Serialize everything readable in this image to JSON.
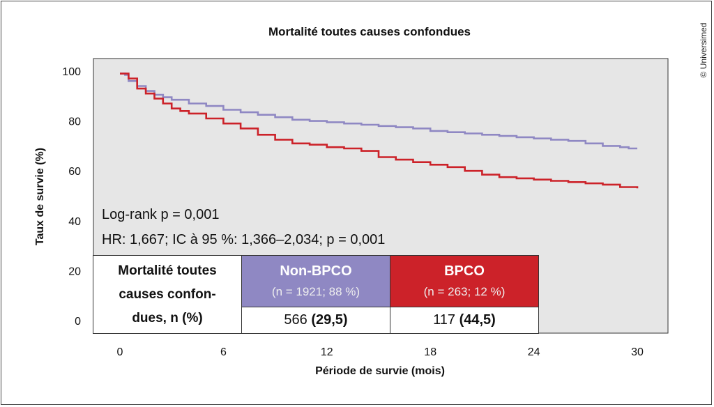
{
  "copyright": "© Universimed",
  "chart_data": {
    "type": "line",
    "title": "Mortalité toutes causes confondues",
    "xlabel": "Période de survie (mois)",
    "ylabel": "Taux de survie (%)",
    "xlim": [
      0,
      30
    ],
    "ylim": [
      0,
      100
    ],
    "xticks": [
      0,
      6,
      12,
      18,
      24,
      30
    ],
    "yticks": [
      0,
      20,
      40,
      60,
      80,
      100
    ],
    "background": "#e6e6e6",
    "grid": false,
    "series": [
      {
        "name": "Non-BPCO",
        "color": "#8f88c3",
        "x": [
          0,
          0.3,
          0.5,
          1,
          1.5,
          2,
          2.5,
          3,
          4,
          5,
          6,
          7,
          8,
          9,
          10,
          11,
          12,
          13,
          14,
          15,
          16,
          17,
          18,
          19,
          20,
          21,
          22,
          23,
          24,
          25,
          26,
          27,
          28,
          29,
          29.5,
          30
        ],
        "y": [
          99,
          98.5,
          96,
          94,
          92,
          90.5,
          89.5,
          88.5,
          87,
          86,
          84.5,
          83.5,
          82.5,
          81.5,
          80.5,
          80,
          79.5,
          79,
          78.5,
          78,
          77.5,
          77,
          76,
          75.5,
          75,
          74.5,
          74,
          73.5,
          73,
          72.5,
          72,
          71,
          70,
          69.5,
          69,
          69
        ]
      },
      {
        "name": "BPCO",
        "color": "#cc2229",
        "x": [
          0,
          0.3,
          0.5,
          1,
          1.5,
          2,
          2.5,
          3,
          3.5,
          4,
          5,
          6,
          7,
          8,
          9,
          10,
          11,
          12,
          13,
          14,
          15,
          16,
          17,
          18,
          19,
          20,
          21,
          22,
          23,
          24,
          25,
          26,
          27,
          28,
          29,
          30
        ],
        "y": [
          99,
          99,
          97,
          93,
          91,
          89,
          87,
          85,
          84,
          83,
          81,
          79,
          77,
          74.5,
          72.5,
          71,
          70.5,
          69.5,
          69,
          68,
          65.5,
          64.5,
          63.5,
          62.5,
          61.5,
          60,
          58.5,
          57.5,
          57,
          56.5,
          56,
          55.5,
          55,
          54.5,
          53.5,
          53
        ]
      }
    ],
    "annotations": [
      "Log-rank p = 0,001",
      "HR: 1,667; IC à 95 %: 1,366–2,034; p = 0,001"
    ]
  },
  "table": {
    "row_label_lines": [
      "Mortalité toutes",
      "causes confon-",
      "dues, n (%)"
    ],
    "groups": [
      {
        "name": "Non-BPCO",
        "count": "(n = 1921; 88 %)",
        "color": "#8f88c3",
        "n": "566",
        "pct": "(29,5)"
      },
      {
        "name": "BPCO",
        "count": "(n = 263; 12 %)",
        "color": "#cc2229",
        "n": "117",
        "pct": "(44,5)"
      }
    ]
  }
}
